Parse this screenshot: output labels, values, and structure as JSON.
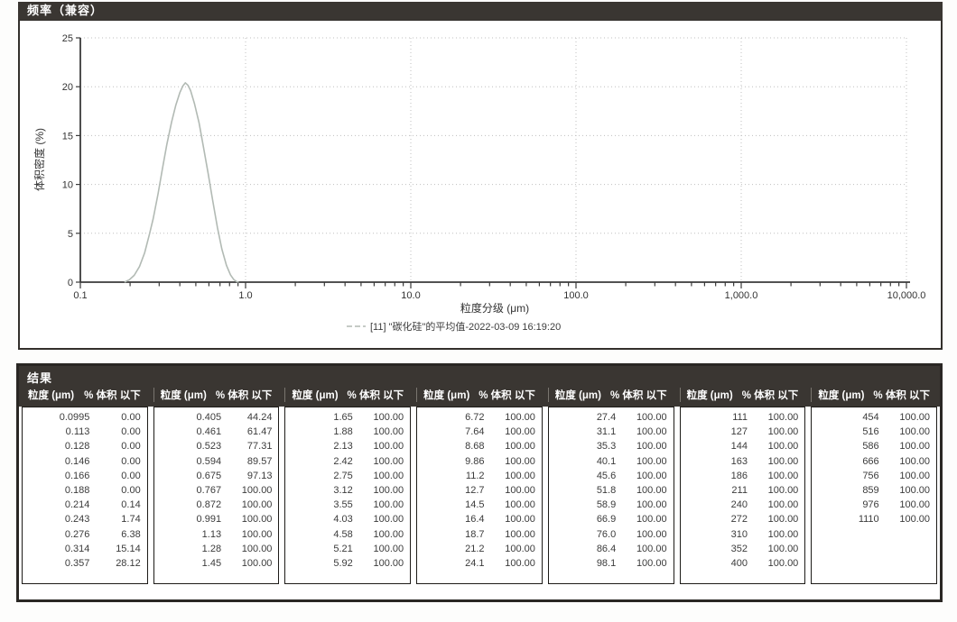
{
  "chart": {
    "title": "频率（兼容）",
    "ylabel": "体积密度 (%)",
    "xlabel": "粒度分级 (μm)",
    "legend": "[11] \"碳化硅\"的平均值-2022-03-09 16:19:20",
    "y_ticks": [
      0,
      5,
      10,
      15,
      20,
      25
    ],
    "x_ticks": [
      "0.1",
      "1.0",
      "10.0",
      "100.0",
      "1,000.0",
      "10,000.0"
    ]
  },
  "chart_data": {
    "type": "line",
    "title": "频率（兼容）",
    "xlabel": "粒度分级 (μm)",
    "ylabel": "体积密度 (%)",
    "x_scale": "log",
    "xlim": [
      0.1,
      10000
    ],
    "ylim": [
      0,
      25
    ],
    "grid": true,
    "legend_position": "bottom",
    "series": [
      {
        "name": "[11] \"碳化硅\"的平均值-2022-03-09 16:19:20",
        "color": "#b2bab4",
        "peak": {
          "x": 0.43,
          "y": 20.4
        },
        "points": [
          [
            0.185,
            0
          ],
          [
            0.198,
            0.25
          ],
          [
            0.212,
            0.7
          ],
          [
            0.228,
            1.6
          ],
          [
            0.245,
            3.0
          ],
          [
            0.262,
            4.9
          ],
          [
            0.276,
            6.5
          ],
          [
            0.295,
            9.0
          ],
          [
            0.314,
            11.6
          ],
          [
            0.334,
            14.1
          ],
          [
            0.357,
            16.4
          ],
          [
            0.378,
            18.1
          ],
          [
            0.4,
            19.4
          ],
          [
            0.418,
            20.1
          ],
          [
            0.432,
            20.4
          ],
          [
            0.448,
            20.15
          ],
          [
            0.465,
            19.6
          ],
          [
            0.49,
            18.3
          ],
          [
            0.523,
            16.3
          ],
          [
            0.555,
            13.9
          ],
          [
            0.594,
            11.1
          ],
          [
            0.632,
            8.4
          ],
          [
            0.675,
            5.6
          ],
          [
            0.718,
            3.4
          ],
          [
            0.767,
            1.7
          ],
          [
            0.81,
            0.75
          ],
          [
            0.85,
            0.25
          ],
          [
            0.885,
            0.05
          ],
          [
            0.91,
            0
          ]
        ]
      }
    ]
  },
  "table": {
    "title": "结果",
    "col_headers": {
      "size": "粒度 (μm)",
      "pct": "% 体积 以下"
    },
    "groups": [
      {
        "rows": [
          [
            "0.0995",
            "0.00"
          ],
          [
            "0.113",
            "0.00"
          ],
          [
            "0.128",
            "0.00"
          ],
          [
            "0.146",
            "0.00"
          ],
          [
            "0.166",
            "0.00"
          ],
          [
            "0.188",
            "0.00"
          ],
          [
            "0.214",
            "0.14"
          ],
          [
            "0.243",
            "1.74"
          ],
          [
            "0.276",
            "6.38"
          ],
          [
            "0.314",
            "15.14"
          ],
          [
            "0.357",
            "28.12"
          ]
        ]
      },
      {
        "rows": [
          [
            "0.405",
            "44.24"
          ],
          [
            "0.461",
            "61.47"
          ],
          [
            "0.523",
            "77.31"
          ],
          [
            "0.594",
            "89.57"
          ],
          [
            "0.675",
            "97.13"
          ],
          [
            "0.767",
            "100.00"
          ],
          [
            "0.872",
            "100.00"
          ],
          [
            "0.991",
            "100.00"
          ],
          [
            "1.13",
            "100.00"
          ],
          [
            "1.28",
            "100.00"
          ],
          [
            "1.45",
            "100.00"
          ]
        ]
      },
      {
        "rows": [
          [
            "1.65",
            "100.00"
          ],
          [
            "1.88",
            "100.00"
          ],
          [
            "2.13",
            "100.00"
          ],
          [
            "2.42",
            "100.00"
          ],
          [
            "2.75",
            "100.00"
          ],
          [
            "3.12",
            "100.00"
          ],
          [
            "3.55",
            "100.00"
          ],
          [
            "4.03",
            "100.00"
          ],
          [
            "4.58",
            "100.00"
          ],
          [
            "5.21",
            "100.00"
          ],
          [
            "5.92",
            "100.00"
          ]
        ]
      },
      {
        "rows": [
          [
            "6.72",
            "100.00"
          ],
          [
            "7.64",
            "100.00"
          ],
          [
            "8.68",
            "100.00"
          ],
          [
            "9.86",
            "100.00"
          ],
          [
            "11.2",
            "100.00"
          ],
          [
            "12.7",
            "100.00"
          ],
          [
            "14.5",
            "100.00"
          ],
          [
            "16.4",
            "100.00"
          ],
          [
            "18.7",
            "100.00"
          ],
          [
            "21.2",
            "100.00"
          ],
          [
            "24.1",
            "100.00"
          ]
        ]
      },
      {
        "rows": [
          [
            "27.4",
            "100.00"
          ],
          [
            "31.1",
            "100.00"
          ],
          [
            "35.3",
            "100.00"
          ],
          [
            "40.1",
            "100.00"
          ],
          [
            "45.6",
            "100.00"
          ],
          [
            "51.8",
            "100.00"
          ],
          [
            "58.9",
            "100.00"
          ],
          [
            "66.9",
            "100.00"
          ],
          [
            "76.0",
            "100.00"
          ],
          [
            "86.4",
            "100.00"
          ],
          [
            "98.1",
            "100.00"
          ]
        ]
      },
      {
        "rows": [
          [
            "111",
            "100.00"
          ],
          [
            "127",
            "100.00"
          ],
          [
            "144",
            "100.00"
          ],
          [
            "163",
            "100.00"
          ],
          [
            "186",
            "100.00"
          ],
          [
            "211",
            "100.00"
          ],
          [
            "240",
            "100.00"
          ],
          [
            "272",
            "100.00"
          ],
          [
            "310",
            "100.00"
          ],
          [
            "352",
            "100.00"
          ],
          [
            "400",
            "100.00"
          ]
        ]
      },
      {
        "rows": [
          [
            "454",
            "100.00"
          ],
          [
            "516",
            "100.00"
          ],
          [
            "586",
            "100.00"
          ],
          [
            "666",
            "100.00"
          ],
          [
            "756",
            "100.00"
          ],
          [
            "859",
            "100.00"
          ],
          [
            "976",
            "100.00"
          ],
          [
            "1110",
            "100.00"
          ]
        ]
      }
    ]
  }
}
